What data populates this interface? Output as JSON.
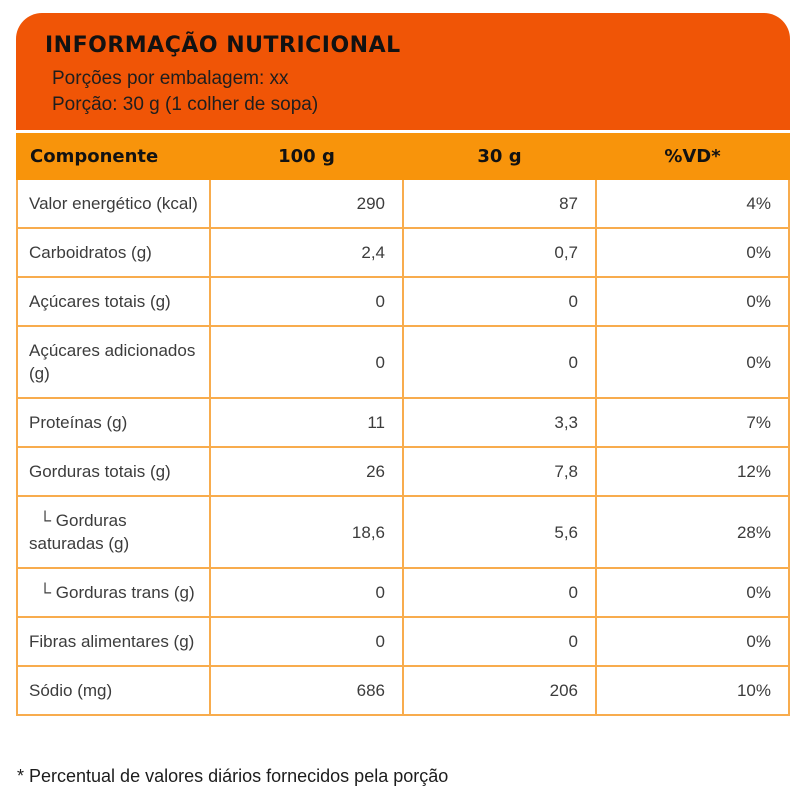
{
  "header": {
    "title": "INFORMAÇÃO NUTRICIONAL",
    "servings_per_package": "Porções por embalagem: xx",
    "serving_size": "Porção: 30 g (1 colher de sopa)"
  },
  "table": {
    "columns": [
      "Componente",
      "100 g",
      "30 g",
      "%VD*"
    ],
    "rows": [
      {
        "name": "Valor energético (kcal)",
        "per100g": "290",
        "per30g": "87",
        "vd": "4%",
        "sub": false
      },
      {
        "name": "Carboidratos (g)",
        "per100g": "2,4",
        "per30g": "0,7",
        "vd": "0%",
        "sub": false
      },
      {
        "name": "Açúcares totais (g)",
        "per100g": "0",
        "per30g": "0",
        "vd": "0%",
        "sub": false
      },
      {
        "name": "Açúcares adicionados (g)",
        "per100g": "0",
        "per30g": "0",
        "vd": "0%",
        "sub": false
      },
      {
        "name": "Proteínas (g)",
        "per100g": "11",
        "per30g": "3,3",
        "vd": "7%",
        "sub": false
      },
      {
        "name": "Gorduras totais (g)",
        "per100g": "26",
        "per30g": "7,8",
        "vd": "12%",
        "sub": false
      },
      {
        "name": "└ Gorduras saturadas (g)",
        "per100g": "18,6",
        "per30g": "5,6",
        "vd": "28%",
        "sub": true
      },
      {
        "name": "└ Gorduras trans (g)",
        "per100g": "0",
        "per30g": "0",
        "vd": "0%",
        "sub": true
      },
      {
        "name": "Fibras alimentares (g)",
        "per100g": "0",
        "per30g": "0",
        "vd": "0%",
        "sub": false
      },
      {
        "name": "Sódio (mg)",
        "per100g": "686",
        "per30g": "206",
        "vd": "10%",
        "sub": false
      }
    ]
  },
  "footer": {
    "note": "* Percentual de valores diários fornecidos pela porção"
  },
  "colors": {
    "header_bg": "#F05506",
    "table_header_bg": "#F8940B",
    "table_border": "#F8AC4D",
    "body_text": "#3C3C3C",
    "heading_text": "#121212"
  }
}
